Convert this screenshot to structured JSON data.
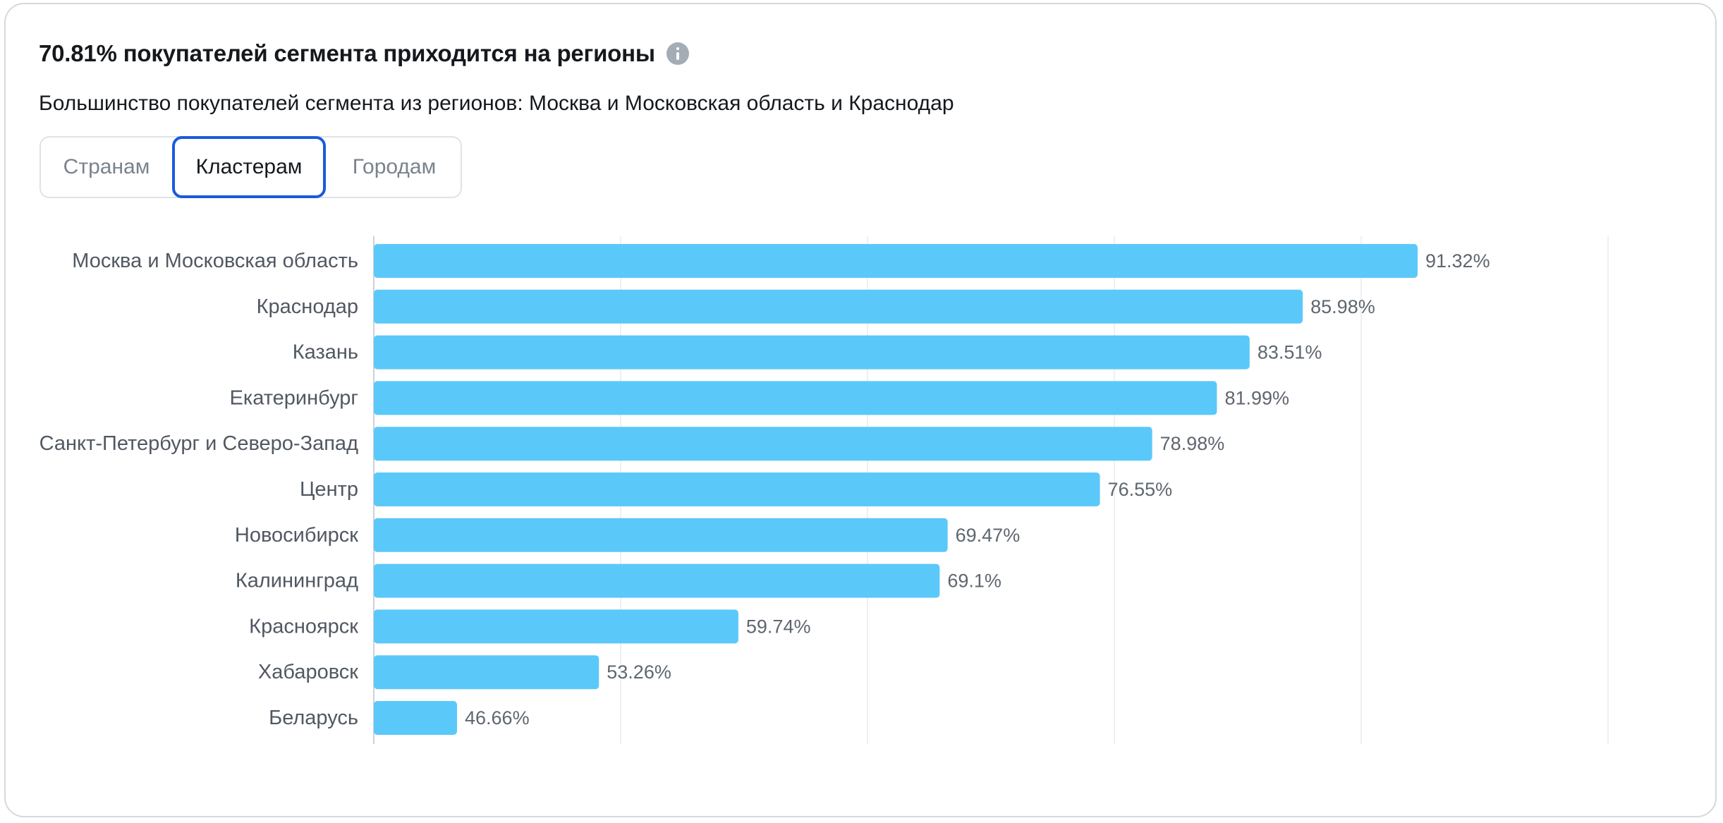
{
  "header": {
    "title": "70.81% покупателей сегмента приходится на регионы",
    "subtitle": "Большинство покупателей сегмента из регионов: Москва и Московская область и Краснодар",
    "info_icon": "info-icon"
  },
  "tabs": [
    {
      "label": "Странам",
      "active": false
    },
    {
      "label": "Кластерам",
      "active": true
    },
    {
      "label": "Городам",
      "active": false
    }
  ],
  "colors": {
    "bar": "#5bc8fa",
    "accent": "#1a5bdd",
    "grid": "#eef0f2",
    "axis": "#cdd2d8"
  },
  "chart_data": {
    "type": "bar",
    "orientation": "horizontal",
    "categories": [
      "Москва и Московская область",
      "Краснодар",
      "Казань",
      "Екатеринбург",
      "Санкт-Петербург и Северо-Запад",
      "Центр",
      "Новосибирск",
      "Калининград",
      "Красноярск",
      "Хабаровск",
      "Беларусь"
    ],
    "values": [
      91.32,
      85.98,
      83.51,
      81.99,
      78.98,
      76.55,
      69.47,
      69.1,
      59.74,
      53.26,
      46.66
    ],
    "value_labels": [
      "91.32%",
      "85.98%",
      "83.51%",
      "81.99%",
      "78.98%",
      "76.55%",
      "69.47%",
      "69.1%",
      "59.74%",
      "53.26%",
      "46.66%"
    ],
    "grid": true,
    "legend": "none"
  }
}
